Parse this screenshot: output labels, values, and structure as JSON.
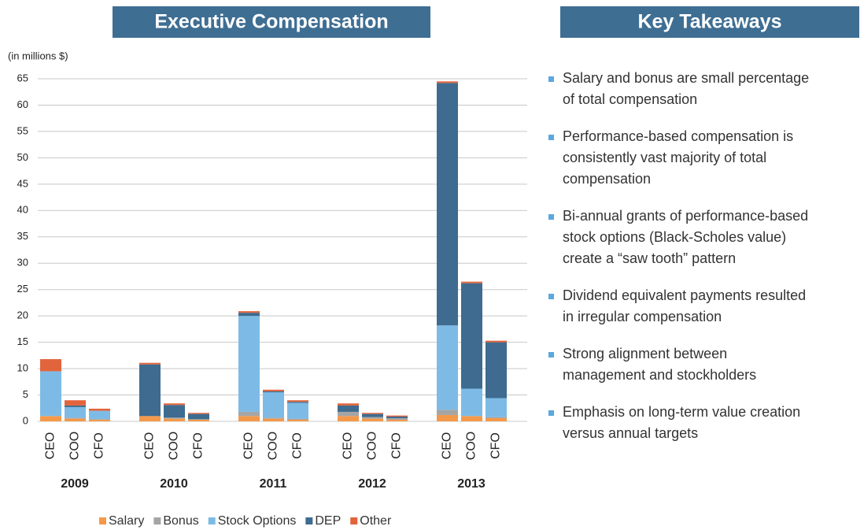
{
  "chart_data": {
    "type": "stacked_bar",
    "title": "Executive Compensation",
    "ylabel": "(in millions $)",
    "categories": [
      "CEO",
      "COO",
      "CFO",
      "CEO",
      "COO",
      "CFO",
      "CEO",
      "COO",
      "CFO",
      "CEO",
      "COO",
      "CFO",
      "CEO",
      "COO",
      "CFO"
    ],
    "groups": [
      "2009",
      "2010",
      "2011",
      "2012",
      "2013"
    ],
    "ylim": [
      0,
      65
    ],
    "yticks": [
      0,
      5,
      10,
      15,
      20,
      25,
      30,
      35,
      40,
      45,
      50,
      55,
      60,
      65
    ],
    "grid": true,
    "legend": "bottom",
    "series": [
      {
        "name": "Salary",
        "color": "#f4994a",
        "values": [
          1,
          0.5,
          0.3,
          1,
          0.5,
          0.3,
          1,
          0.5,
          0.3,
          1,
          0.5,
          0.3,
          1.2,
          1,
          0.6
        ]
      },
      {
        "name": "Bonus",
        "color": "#a5a5a5",
        "values": [
          0,
          0.2,
          0.1,
          0,
          0.2,
          0.1,
          0.8,
          0.2,
          0.2,
          0.8,
          0.3,
          0.3,
          1,
          0,
          0.2
        ]
      },
      {
        "name": "Stock Options",
        "color": "#7dbbe6",
        "values": [
          8.5,
          2,
          1.6,
          0,
          0,
          0,
          18.2,
          4.8,
          3,
          0,
          0,
          0,
          16,
          5.2,
          3.6
        ]
      },
      {
        "name": "DEP",
        "color": "#3e6b8f",
        "values": [
          0,
          0.3,
          0,
          9.8,
          2.4,
          1,
          0.6,
          0.2,
          0.2,
          1.2,
          0.6,
          0.3,
          46,
          20,
          10.6
        ]
      },
      {
        "name": "Other",
        "color": "#e2643c",
        "values": [
          2.3,
          1,
          0.4,
          0.3,
          0.3,
          0.2,
          0.3,
          0.3,
          0.3,
          0.4,
          0.2,
          0.2,
          0.3,
          0.3,
          0.3
        ]
      }
    ]
  },
  "takeaways": {
    "title": "Key Takeaways",
    "items": [
      [
        "Salary and bonus are small percentage",
        "of total compensation"
      ],
      [
        "Performance-based compensation is",
        "consistently vast majority of total",
        "compensation"
      ],
      [
        "Bi-annual grants of performance-based",
        "stock options (Black-Scholes value)",
        "create a “saw tooth” pattern"
      ],
      [
        "Dividend equivalent payments resulted",
        "in irregular compensation"
      ],
      [
        "Strong alignment between",
        "management and stockholders"
      ],
      [
        "Emphasis on long-term value creation",
        "versus annual targets"
      ]
    ]
  }
}
